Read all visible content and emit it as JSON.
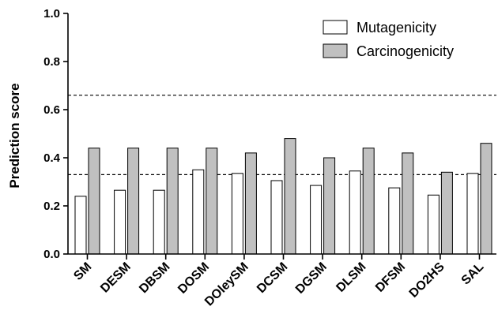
{
  "chart_data": {
    "type": "bar",
    "title": "",
    "xlabel": "",
    "ylabel": "Prediction score",
    "ylim": [
      0,
      1.0
    ],
    "yticks": [
      "0.0",
      "0.2",
      "0.4",
      "0.6",
      "0.8",
      "1.0"
    ],
    "categories": [
      "SM",
      "DESM",
      "DBSM",
      "DOSM",
      "DOleySM",
      "DCSM",
      "DGSM",
      "DLSM",
      "DFSM",
      "DO2HS",
      "SAL"
    ],
    "series": [
      {
        "name": "Mutagenicity",
        "color": "#ffffff",
        "values": [
          0.24,
          0.265,
          0.265,
          0.35,
          0.335,
          0.305,
          0.285,
          0.345,
          0.275,
          0.245,
          0.335
        ]
      },
      {
        "name": "Carcinogenicity",
        "color": "#c0c0c0",
        "values": [
          0.44,
          0.44,
          0.44,
          0.44,
          0.42,
          0.48,
          0.4,
          0.44,
          0.42,
          0.34,
          0.46
        ]
      }
    ],
    "reference_lines": [
      0.33,
      0.66
    ],
    "grid": false,
    "legend_position": "top-right"
  }
}
